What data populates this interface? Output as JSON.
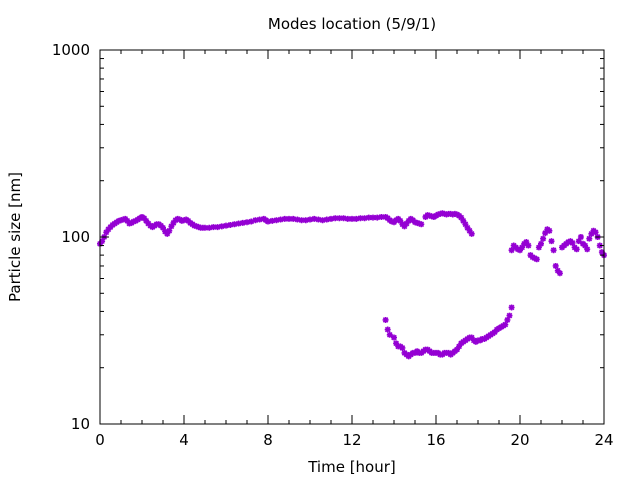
{
  "chart_data": {
    "type": "scatter",
    "title": "Modes location (5/9/1)",
    "xlabel": "Time [hour]",
    "ylabel": "Particle size [nm]",
    "xlim": [
      0,
      24
    ],
    "ylim": [
      10,
      1000
    ],
    "yscale": "log",
    "grid": false,
    "legend": "none",
    "marker_color": "#9400d3",
    "x_ticks": [
      {
        "value": 0,
        "label": "0"
      },
      {
        "value": 4,
        "label": "4"
      },
      {
        "value": 8,
        "label": "8"
      },
      {
        "value": 12,
        "label": "12"
      },
      {
        "value": 16,
        "label": "16"
      },
      {
        "value": 20,
        "label": "20"
      },
      {
        "value": 24,
        "label": "24"
      }
    ],
    "y_ticks": [
      {
        "value": 10,
        "label": "10"
      },
      {
        "value": 100,
        "label": "100"
      },
      {
        "value": 1000,
        "label": "1000"
      }
    ],
    "series": [
      {
        "values": [
          [
            0.0,
            92
          ],
          [
            0.1,
            95
          ],
          [
            0.2,
            100
          ],
          [
            0.3,
            106
          ],
          [
            0.4,
            110
          ],
          [
            0.5,
            113
          ],
          [
            0.6,
            116
          ],
          [
            0.7,
            118
          ],
          [
            0.8,
            120
          ],
          [
            0.9,
            122
          ],
          [
            1.0,
            123
          ],
          [
            1.1,
            124
          ],
          [
            1.2,
            125
          ],
          [
            1.3,
            122
          ],
          [
            1.4,
            118
          ],
          [
            1.5,
            119
          ],
          [
            1.6,
            121
          ],
          [
            1.7,
            122
          ],
          [
            1.8,
            124
          ],
          [
            1.9,
            126
          ],
          [
            2.0,
            128
          ],
          [
            2.1,
            126
          ],
          [
            2.2,
            122
          ],
          [
            2.3,
            118
          ],
          [
            2.4,
            115
          ],
          [
            2.5,
            113
          ],
          [
            2.6,
            115
          ],
          [
            2.7,
            117
          ],
          [
            2.8,
            117
          ],
          [
            2.9,
            115
          ],
          [
            3.0,
            112
          ],
          [
            3.1,
            107
          ],
          [
            3.2,
            104
          ],
          [
            3.3,
            108
          ],
          [
            3.4,
            114
          ],
          [
            3.5,
            119
          ],
          [
            3.6,
            123
          ],
          [
            3.7,
            125
          ],
          [
            3.8,
            124
          ],
          [
            3.9,
            122
          ],
          [
            4.0,
            123
          ],
          [
            4.1,
            124
          ],
          [
            4.2,
            122
          ],
          [
            4.3,
            119
          ],
          [
            4.4,
            117
          ],
          [
            4.5,
            115
          ],
          [
            4.6,
            114
          ],
          [
            4.7,
            113
          ],
          [
            4.8,
            112
          ],
          [
            4.9,
            112
          ],
          [
            5.0,
            112
          ],
          [
            5.2,
            112
          ],
          [
            5.4,
            113
          ],
          [
            5.6,
            113
          ],
          [
            5.8,
            114
          ],
          [
            6.0,
            115
          ],
          [
            6.2,
            116
          ],
          [
            6.4,
            117
          ],
          [
            6.6,
            118
          ],
          [
            6.8,
            119
          ],
          [
            7.0,
            120
          ],
          [
            7.2,
            121
          ],
          [
            7.4,
            123
          ],
          [
            7.6,
            124
          ],
          [
            7.8,
            125
          ],
          [
            7.9,
            123
          ],
          [
            8.0,
            121
          ],
          [
            8.2,
            122
          ],
          [
            8.4,
            123
          ],
          [
            8.6,
            124
          ],
          [
            8.8,
            125
          ],
          [
            9.0,
            125
          ],
          [
            9.2,
            125
          ],
          [
            9.4,
            124
          ],
          [
            9.6,
            123
          ],
          [
            9.8,
            123
          ],
          [
            10.0,
            124
          ],
          [
            10.2,
            125
          ],
          [
            10.4,
            124
          ],
          [
            10.6,
            123
          ],
          [
            10.8,
            124
          ],
          [
            11.0,
            125
          ],
          [
            11.2,
            126
          ],
          [
            11.4,
            126
          ],
          [
            11.6,
            126
          ],
          [
            11.8,
            125
          ],
          [
            12.0,
            125
          ],
          [
            12.2,
            125
          ],
          [
            12.4,
            126
          ],
          [
            12.6,
            126
          ],
          [
            12.8,
            127
          ],
          [
            13.0,
            127
          ],
          [
            13.2,
            127
          ],
          [
            13.4,
            128
          ],
          [
            13.6,
            128
          ],
          [
            13.7,
            126
          ],
          [
            13.8,
            123
          ],
          [
            13.9,
            121
          ],
          [
            14.0,
            120
          ],
          [
            14.1,
            123
          ],
          [
            14.2,
            125
          ],
          [
            14.3,
            122
          ],
          [
            14.4,
            117
          ],
          [
            14.5,
            114
          ],
          [
            14.6,
            118
          ],
          [
            14.7,
            122
          ],
          [
            14.8,
            125
          ],
          [
            14.9,
            123
          ],
          [
            15.0,
            120
          ],
          [
            15.1,
            119
          ],
          [
            15.2,
            118
          ],
          [
            15.3,
            117
          ],
          [
            15.5,
            128
          ],
          [
            15.6,
            131
          ],
          [
            15.7,
            130
          ],
          [
            15.8,
            129
          ],
          [
            15.9,
            128
          ],
          [
            16.0,
            130
          ],
          [
            16.1,
            132
          ],
          [
            16.2,
            133
          ],
          [
            16.3,
            134
          ],
          [
            16.4,
            133
          ],
          [
            16.5,
            132
          ],
          [
            16.6,
            133
          ],
          [
            16.7,
            133
          ],
          [
            16.8,
            132
          ],
          [
            16.9,
            133
          ],
          [
            17.0,
            132
          ],
          [
            17.1,
            130
          ],
          [
            17.2,
            127
          ],
          [
            17.3,
            122
          ],
          [
            17.4,
            117
          ],
          [
            17.5,
            112
          ],
          [
            17.6,
            108
          ],
          [
            17.7,
            104
          ],
          [
            13.6,
            36
          ],
          [
            13.7,
            32
          ],
          [
            13.8,
            30
          ],
          [
            14.0,
            29
          ],
          [
            14.1,
            27
          ],
          [
            14.2,
            26
          ],
          [
            14.3,
            26
          ],
          [
            14.4,
            25.5
          ],
          [
            14.5,
            24
          ],
          [
            14.6,
            23.5
          ],
          [
            14.7,
            23
          ],
          [
            14.8,
            23.5
          ],
          [
            14.9,
            24
          ],
          [
            15.0,
            24
          ],
          [
            15.1,
            24.5
          ],
          [
            15.2,
            24
          ],
          [
            15.3,
            24
          ],
          [
            15.4,
            24.5
          ],
          [
            15.5,
            25
          ],
          [
            15.6,
            25
          ],
          [
            15.7,
            24.5
          ],
          [
            15.8,
            24
          ],
          [
            15.9,
            24
          ],
          [
            16.0,
            24
          ],
          [
            16.1,
            24
          ],
          [
            16.2,
            23.5
          ],
          [
            16.3,
            23.5
          ],
          [
            16.4,
            24
          ],
          [
            16.5,
            24
          ],
          [
            16.6,
            24
          ],
          [
            16.7,
            23.5
          ],
          [
            16.8,
            24
          ],
          [
            16.9,
            24.5
          ],
          [
            17.0,
            25
          ],
          [
            17.1,
            26
          ],
          [
            17.2,
            27
          ],
          [
            17.3,
            27.5
          ],
          [
            17.4,
            28
          ],
          [
            17.5,
            28.5
          ],
          [
            17.6,
            29
          ],
          [
            17.7,
            29
          ],
          [
            17.8,
            28
          ],
          [
            17.9,
            27.5
          ],
          [
            18.0,
            28
          ],
          [
            18.1,
            28
          ],
          [
            18.2,
            28.5
          ],
          [
            18.3,
            28.5
          ],
          [
            18.4,
            29
          ],
          [
            18.5,
            29.5
          ],
          [
            18.6,
            30
          ],
          [
            18.7,
            30.5
          ],
          [
            18.8,
            31
          ],
          [
            18.9,
            32
          ],
          [
            19.0,
            32.5
          ],
          [
            19.1,
            33
          ],
          [
            19.2,
            33.5
          ],
          [
            19.3,
            34
          ],
          [
            19.4,
            36
          ],
          [
            19.5,
            38
          ],
          [
            19.6,
            42
          ],
          [
            19.6,
            85
          ],
          [
            19.7,
            90
          ],
          [
            19.8,
            88
          ],
          [
            19.9,
            86
          ],
          [
            20.0,
            85
          ],
          [
            20.1,
            88
          ],
          [
            20.2,
            92
          ],
          [
            20.3,
            94
          ],
          [
            20.4,
            90
          ],
          [
            20.5,
            80
          ],
          [
            20.6,
            78
          ],
          [
            20.7,
            77
          ],
          [
            20.8,
            76
          ],
          [
            20.9,
            88
          ],
          [
            21.0,
            92
          ],
          [
            21.1,
            98
          ],
          [
            21.2,
            105
          ],
          [
            21.3,
            110
          ],
          [
            21.4,
            108
          ],
          [
            21.5,
            95
          ],
          [
            21.6,
            85
          ],
          [
            21.7,
            70
          ],
          [
            21.8,
            66
          ],
          [
            21.9,
            64
          ],
          [
            22.0,
            88
          ],
          [
            22.1,
            90
          ],
          [
            22.2,
            92
          ],
          [
            22.3,
            94
          ],
          [
            22.4,
            95
          ],
          [
            22.5,
            93
          ],
          [
            22.6,
            88
          ],
          [
            22.7,
            86
          ],
          [
            22.8,
            95
          ],
          [
            22.9,
            100
          ],
          [
            23.0,
            92
          ],
          [
            23.1,
            90
          ],
          [
            23.2,
            86
          ],
          [
            23.3,
            98
          ],
          [
            23.4,
            104
          ],
          [
            23.5,
            108
          ],
          [
            23.6,
            106
          ],
          [
            23.7,
            100
          ],
          [
            23.8,
            90
          ],
          [
            23.9,
            83
          ],
          [
            24.0,
            80
          ]
        ]
      }
    ]
  }
}
